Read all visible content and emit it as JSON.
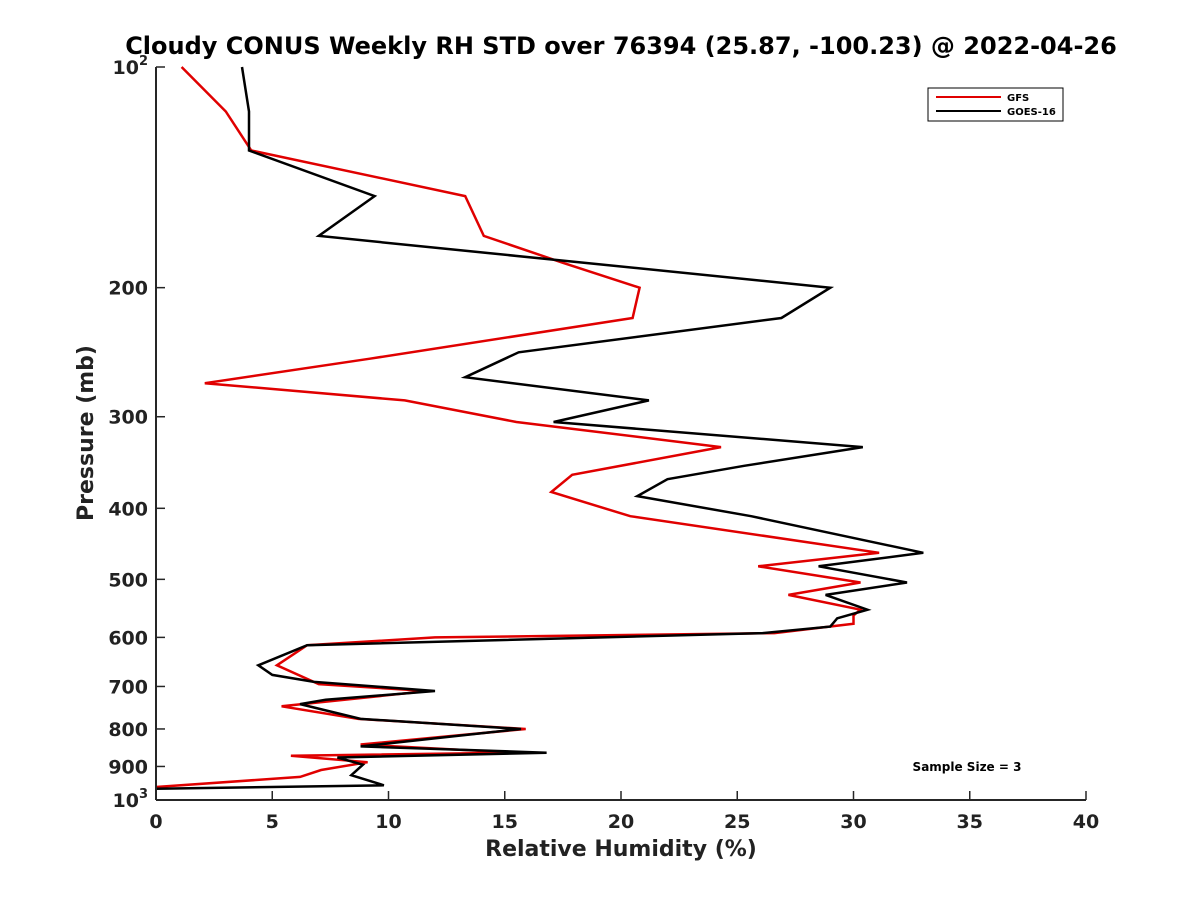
{
  "chart_data": {
    "type": "line",
    "title": "Cloudy CONUS Weekly RH STD over 76394 (25.87, -100.23) @ 2022-04-26",
    "xlabel": "Relative Humidity (%)",
    "ylabel": "Pressure (mb)",
    "xlim": [
      0,
      40
    ],
    "ylim": [
      100,
      1000
    ],
    "yscale": "log",
    "y_reversed": true,
    "grid": false,
    "legend_position": "top-right",
    "x_ticks": [
      "0",
      "5",
      "10",
      "15",
      "20",
      "25",
      "30",
      "35",
      "40"
    ],
    "y_ticks": [
      {
        "value": 100,
        "base": "10",
        "exp": "2"
      },
      {
        "value": 200,
        "label": "200"
      },
      {
        "value": 300,
        "label": "300"
      },
      {
        "value": 400,
        "label": "400"
      },
      {
        "value": 500,
        "label": "500"
      },
      {
        "value": 600,
        "label": "600"
      },
      {
        "value": 700,
        "label": "700"
      },
      {
        "value": 800,
        "label": "800"
      },
      {
        "value": 900,
        "label": "900"
      },
      {
        "value": 1000,
        "base": "10",
        "exp": "3"
      }
    ],
    "series": [
      {
        "name": "GFS",
        "color": "#e00000",
        "points": [
          [
            1.1,
            100
          ],
          [
            3.0,
            115
          ],
          [
            4.1,
            130
          ],
          [
            13.3,
            150
          ],
          [
            14.1,
            170
          ],
          [
            17.5,
            185
          ],
          [
            20.8,
            200
          ],
          [
            20.5,
            220
          ],
          [
            9.2,
            250
          ],
          [
            2.1,
            270
          ],
          [
            10.7,
            285
          ],
          [
            15.5,
            305
          ],
          [
            24.3,
            330
          ],
          [
            17.9,
            360
          ],
          [
            17.0,
            380
          ],
          [
            20.4,
            410
          ],
          [
            31.1,
            460
          ],
          [
            25.9,
            480
          ],
          [
            30.3,
            505
          ],
          [
            27.2,
            525
          ],
          [
            30.3,
            550
          ],
          [
            30.0,
            560
          ],
          [
            30.0,
            575
          ],
          [
            26.6,
            592
          ],
          [
            12.0,
            600
          ],
          [
            6.5,
            615
          ],
          [
            5.2,
            655
          ],
          [
            7.0,
            695
          ],
          [
            11.7,
            710
          ],
          [
            5.4,
            745
          ],
          [
            8.7,
            775
          ],
          [
            15.9,
            800
          ],
          [
            8.8,
            840
          ],
          [
            15.4,
            862
          ],
          [
            5.8,
            870
          ],
          [
            9.1,
            888
          ],
          [
            7.1,
            910
          ],
          [
            6.2,
            930
          ],
          [
            0,
            960
          ]
        ]
      },
      {
        "name": "GOES-16",
        "color": "#000000",
        "points": [
          [
            3.7,
            100
          ],
          [
            4.0,
            115
          ],
          [
            4.0,
            130
          ],
          [
            9.4,
            150
          ],
          [
            7.0,
            170
          ],
          [
            29.0,
            200
          ],
          [
            26.9,
            220
          ],
          [
            15.6,
            245
          ],
          [
            13.3,
            265
          ],
          [
            21.2,
            285
          ],
          [
            17.1,
            305
          ],
          [
            30.4,
            330
          ],
          [
            25.3,
            350
          ],
          [
            22.0,
            365
          ],
          [
            20.7,
            385
          ],
          [
            25.6,
            410
          ],
          [
            33.0,
            460
          ],
          [
            28.5,
            480
          ],
          [
            32.3,
            505
          ],
          [
            28.8,
            525
          ],
          [
            30.6,
            550
          ],
          [
            29.3,
            565
          ],
          [
            29.0,
            580
          ],
          [
            26.1,
            592
          ],
          [
            6.5,
            615
          ],
          [
            4.4,
            655
          ],
          [
            5.0,
            675
          ],
          [
            6.8,
            690
          ],
          [
            12.0,
            710
          ],
          [
            7.3,
            730
          ],
          [
            6.2,
            740
          ],
          [
            8.8,
            775
          ],
          [
            15.7,
            800
          ],
          [
            8.8,
            845
          ],
          [
            16.8,
            862
          ],
          [
            7.8,
            875
          ],
          [
            8.9,
            895
          ],
          [
            8.4,
            925
          ],
          [
            9.8,
            955
          ],
          [
            0,
            965
          ]
        ]
      }
    ],
    "annotations": [
      "Sample Size = 3"
    ]
  }
}
